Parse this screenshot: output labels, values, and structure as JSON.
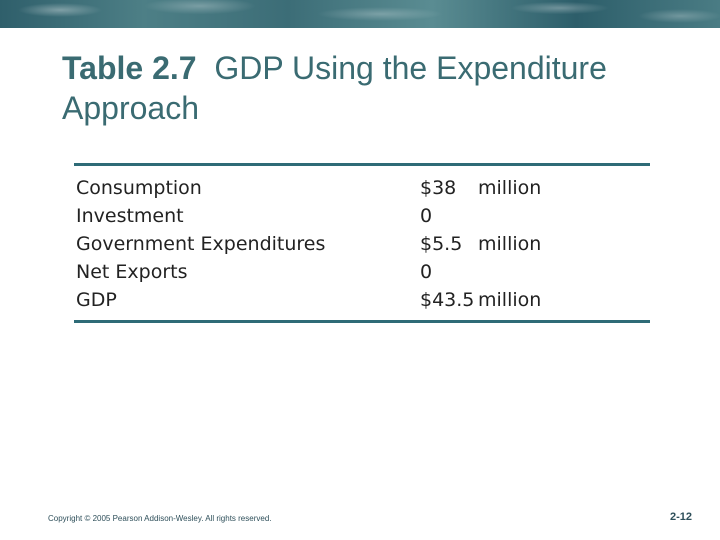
{
  "title": {
    "bold": "Table 2.7",
    "rest": "GDP Using the Expenditure Approach"
  },
  "table": {
    "rows": [
      {
        "label": "Consumption",
        "amount": "$38",
        "unit": "million"
      },
      {
        "label": "Investment",
        "amount": "0",
        "unit": ""
      },
      {
        "label": "Government Expenditures",
        "amount": "$5.5",
        "unit": "million"
      },
      {
        "label": "Net Exports",
        "amount": "0",
        "unit": ""
      },
      {
        "label": "GDP",
        "amount": "$43.5",
        "unit": "million"
      }
    ]
  },
  "footer": {
    "copyright": "Copyright © 2005 Pearson Addison-Wesley. All rights reserved.",
    "page": "2-12"
  },
  "colors": {
    "title": "#3a6b72",
    "rule": "#2e6b77",
    "banner": "#3c6d77"
  }
}
